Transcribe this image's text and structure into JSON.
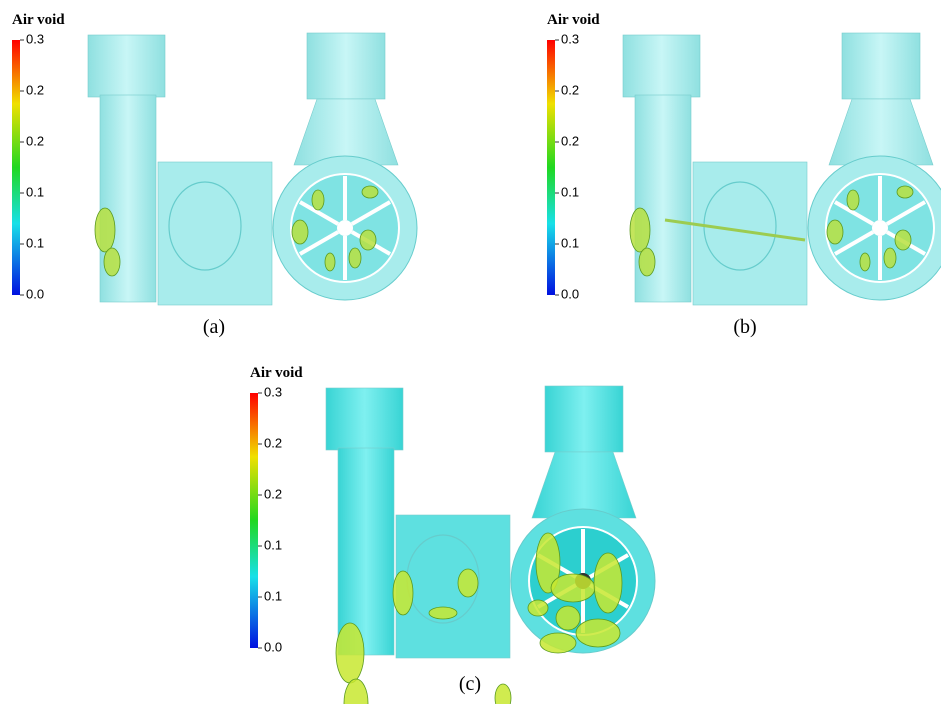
{
  "panels": [
    {
      "caption": "(a)",
      "colorbar": {
        "title": "Air void",
        "ticks": [
          "0.3",
          "0.2",
          "0.2",
          "0.1",
          "0.1",
          "0.0"
        ]
      }
    },
    {
      "caption": "(b)",
      "colorbar": {
        "title": "Air void",
        "ticks": [
          "0.3",
          "0.2",
          "0.2",
          "0.1",
          "0.1",
          "0.0"
        ]
      }
    },
    {
      "caption": "(c)",
      "colorbar": {
        "title": "Air void",
        "ticks": [
          "0.3",
          "0.2",
          "0.2",
          "0.1",
          "0.1",
          "0.0"
        ]
      }
    }
  ]
}
